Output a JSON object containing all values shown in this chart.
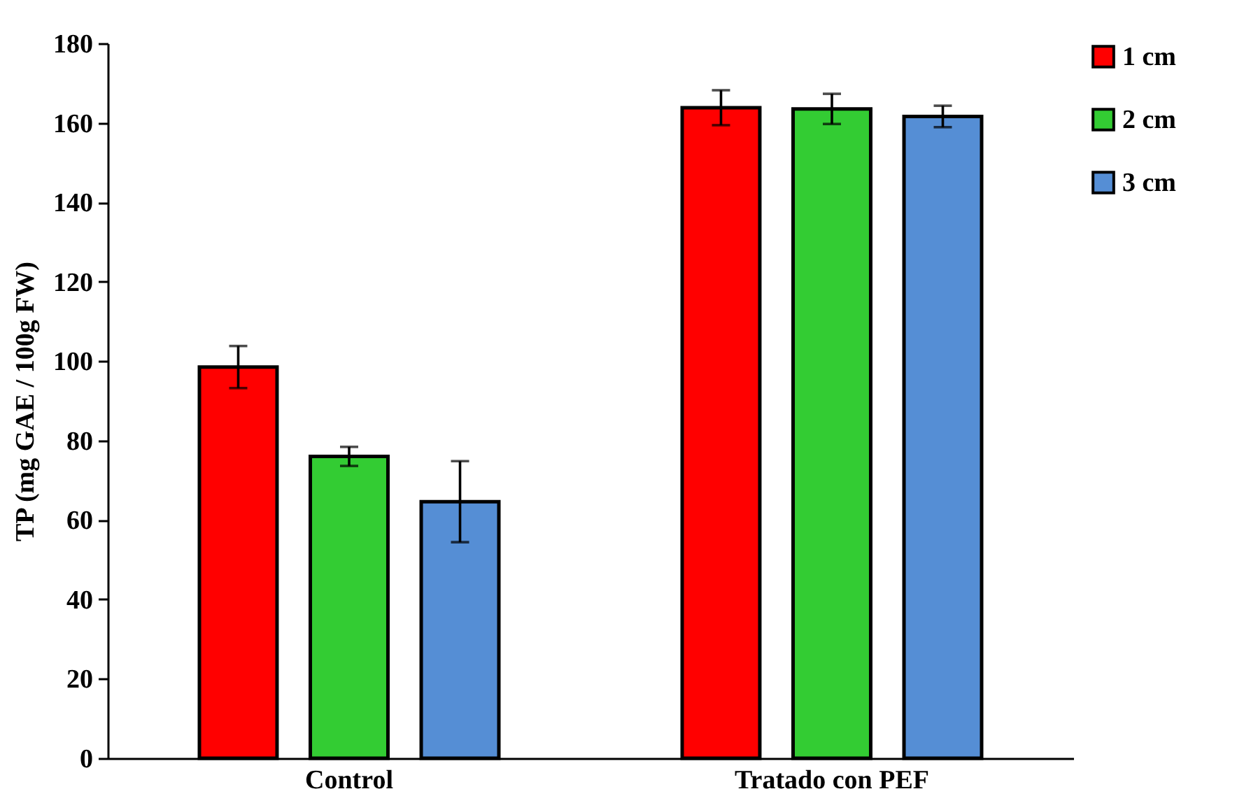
{
  "chart_data": {
    "type": "bar",
    "ylabel": "TP (mg GAE / 100g FW)",
    "categories": [
      "Control",
      "Tratado con PEF"
    ],
    "series": [
      {
        "name": "1 cm",
        "color": "#ff0000",
        "values": [
          98.5,
          163.8
        ],
        "errors": [
          5.3,
          4.4
        ]
      },
      {
        "name": "2 cm",
        "color": "#33cc33",
        "values": [
          76,
          163.5
        ],
        "errors": [
          2.4,
          3.8
        ]
      },
      {
        "name": "3 cm",
        "color": "#558ed5",
        "values": [
          64.6,
          161.6
        ],
        "errors": [
          10.2,
          2.7
        ]
      }
    ],
    "ylim": [
      0,
      180
    ],
    "yticks": [
      0,
      20,
      40,
      60,
      80,
      100,
      120,
      140,
      160,
      180
    ],
    "grid": false,
    "legend": "right"
  }
}
